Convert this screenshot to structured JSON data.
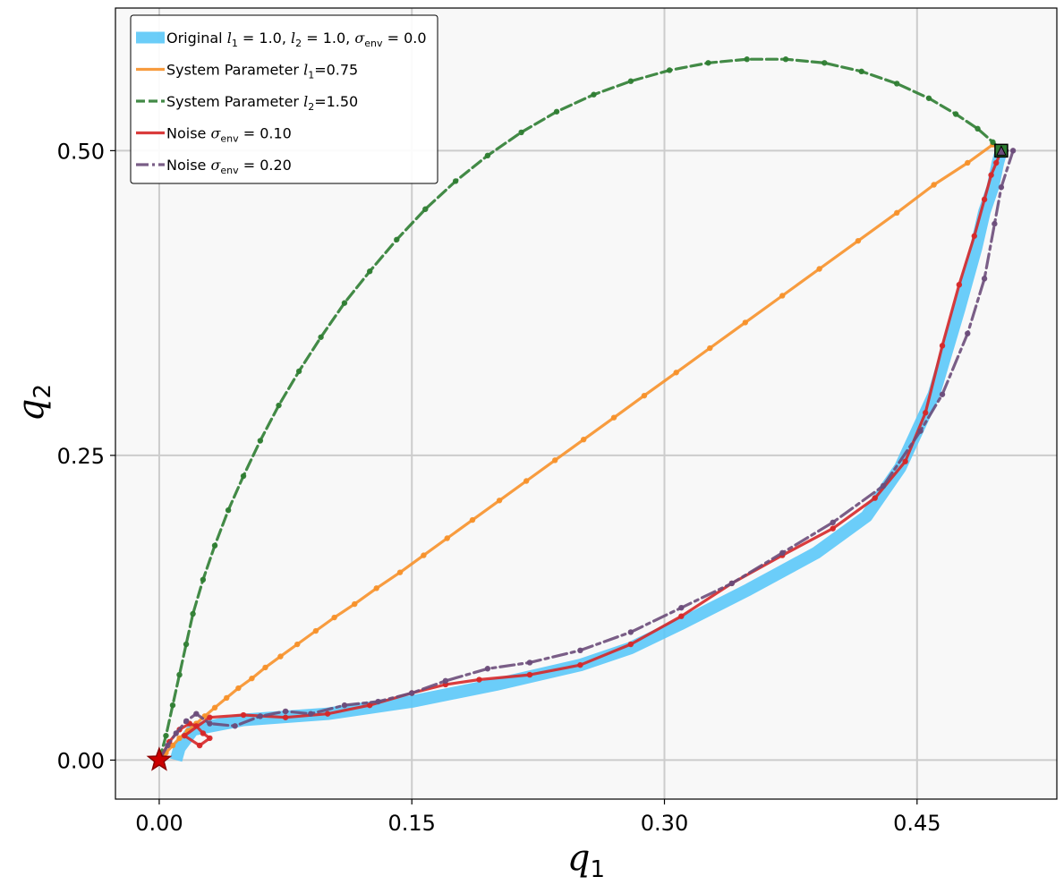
{
  "chart_data": {
    "type": "line",
    "xlabel": {
      "var": "q",
      "sub": "1"
    },
    "ylabel": {
      "var": "q",
      "sub": "2"
    },
    "xlim": [
      -0.026,
      0.533
    ],
    "ylim": [
      -0.032,
      0.617
    ],
    "xticks": [
      0.0,
      0.15,
      0.3,
      0.45
    ],
    "xtick_labels": [
      "0.00",
      "0.15",
      "0.30",
      "0.45"
    ],
    "yticks": [
      0.0,
      0.25,
      0.5
    ],
    "ytick_labels": [
      "0.00",
      "0.25",
      "0.50"
    ],
    "grid": true,
    "legend_position": "top-left",
    "background": "#f8f8f8",
    "start_marker": {
      "x": 0.0,
      "y": 0.0,
      "shape": "star",
      "color": "#cc0000"
    },
    "goal_marker": {
      "x": 0.5,
      "y": 0.5,
      "shape": "square",
      "color": "#2e7d32"
    },
    "legend": [
      {
        "key": "original",
        "parts": [
          [
            "Original ",
            "t"
          ],
          [
            "l",
            "m"
          ],
          [
            "1",
            "s"
          ],
          [
            " = 1.0, ",
            "t"
          ],
          [
            "l",
            "m"
          ],
          [
            "2",
            "s"
          ],
          [
            " = 1.0, ",
            "t"
          ],
          [
            "σ",
            "m"
          ],
          [
            "env",
            "s"
          ],
          [
            " = 0.0",
            "t"
          ]
        ]
      },
      {
        "key": "l1",
        "parts": [
          [
            "System Parameter ",
            "t"
          ],
          [
            "l",
            "m"
          ],
          [
            "1",
            "s"
          ],
          [
            "=0.75",
            "t"
          ]
        ]
      },
      {
        "key": "l2",
        "parts": [
          [
            "System Parameter ",
            "t"
          ],
          [
            "l",
            "m"
          ],
          [
            "2",
            "s"
          ],
          [
            "=1.50",
            "t"
          ]
        ]
      },
      {
        "key": "noise1",
        "parts": [
          [
            "Noise ",
            "t"
          ],
          [
            "σ",
            "m"
          ],
          [
            "env",
            "s"
          ],
          [
            " = 0.10",
            "t"
          ]
        ]
      },
      {
        "key": "noise2",
        "parts": [
          [
            "Noise ",
            "t"
          ],
          [
            "σ",
            "m"
          ],
          [
            "env",
            "s"
          ],
          [
            " = 0.20",
            "t"
          ]
        ]
      }
    ],
    "series": [
      {
        "key": "original",
        "name": "Original l1 = 1.0, l2 = 1.0, σenv = 0.0",
        "color": "#5bc8f8",
        "style": "thick",
        "x": [
          0.01,
          0.012,
          0.02,
          0.05,
          0.1,
          0.15,
          0.2,
          0.25,
          0.28,
          0.31,
          0.35,
          0.39,
          0.42,
          0.44,
          0.46,
          0.475,
          0.485,
          0.49,
          0.495,
          0.498,
          0.5
        ],
        "y": [
          0.0,
          0.01,
          0.025,
          0.033,
          0.038,
          0.048,
          0.062,
          0.078,
          0.092,
          0.112,
          0.14,
          0.17,
          0.2,
          0.24,
          0.3,
          0.37,
          0.42,
          0.45,
          0.47,
          0.49,
          0.5
        ]
      },
      {
        "key": "l1",
        "name": "System Parameter l1=0.75",
        "color": "#f7912a",
        "style": "solid",
        "x": [
          0.0,
          0.004,
          0.008,
          0.012,
          0.017,
          0.022,
          0.027,
          0.033,
          0.04,
          0.047,
          0.055,
          0.063,
          0.072,
          0.082,
          0.093,
          0.104,
          0.116,
          0.129,
          0.143,
          0.157,
          0.171,
          0.186,
          0.202,
          0.218,
          0.235,
          0.252,
          0.27,
          0.288,
          0.307,
          0.327,
          0.348,
          0.37,
          0.392,
          0.415,
          0.438,
          0.46,
          0.48,
          0.495,
          0.5
        ],
        "y": [
          0.0,
          0.006,
          0.012,
          0.018,
          0.024,
          0.03,
          0.036,
          0.043,
          0.051,
          0.059,
          0.067,
          0.076,
          0.085,
          0.095,
          0.106,
          0.117,
          0.128,
          0.141,
          0.154,
          0.168,
          0.182,
          0.197,
          0.213,
          0.229,
          0.246,
          0.263,
          0.281,
          0.299,
          0.318,
          0.338,
          0.359,
          0.381,
          0.403,
          0.426,
          0.449,
          0.472,
          0.49,
          0.505,
          0.5
        ]
      },
      {
        "key": "l2",
        "name": "System Parameter l2=1.50",
        "color": "#2e7d32",
        "style": "dash",
        "x": [
          0.0,
          0.004,
          0.008,
          0.012,
          0.016,
          0.02,
          0.026,
          0.033,
          0.041,
          0.05,
          0.06,
          0.071,
          0.083,
          0.096,
          0.11,
          0.125,
          0.141,
          0.158,
          0.176,
          0.195,
          0.215,
          0.236,
          0.258,
          0.28,
          0.303,
          0.326,
          0.349,
          0.372,
          0.395,
          0.417,
          0.438,
          0.457,
          0.473,
          0.486,
          0.495,
          0.5
        ],
        "y": [
          0.0,
          0.02,
          0.045,
          0.07,
          0.095,
          0.12,
          0.148,
          0.176,
          0.205,
          0.233,
          0.262,
          0.291,
          0.319,
          0.347,
          0.375,
          0.401,
          0.427,
          0.452,
          0.475,
          0.496,
          0.515,
          0.532,
          0.546,
          0.557,
          0.566,
          0.572,
          0.575,
          0.575,
          0.572,
          0.565,
          0.555,
          0.543,
          0.53,
          0.518,
          0.507,
          0.5
        ]
      },
      {
        "key": "noise1",
        "name": "Noise σenv = 0.10",
        "color": "#d62728",
        "style": "solid",
        "x": [
          0.0,
          0.006,
          0.012,
          0.018,
          0.022,
          0.026,
          0.03,
          0.024,
          0.015,
          0.03,
          0.05,
          0.075,
          0.1,
          0.125,
          0.15,
          0.17,
          0.19,
          0.22,
          0.25,
          0.28,
          0.31,
          0.34,
          0.37,
          0.4,
          0.425,
          0.443,
          0.455,
          0.465,
          0.475,
          0.484,
          0.49,
          0.494,
          0.497,
          0.5
        ],
        "y": [
          0.0,
          0.015,
          0.025,
          0.03,
          0.028,
          0.022,
          0.018,
          0.012,
          0.02,
          0.035,
          0.037,
          0.035,
          0.038,
          0.045,
          0.055,
          0.062,
          0.066,
          0.07,
          0.078,
          0.095,
          0.118,
          0.145,
          0.168,
          0.19,
          0.215,
          0.245,
          0.285,
          0.34,
          0.39,
          0.43,
          0.46,
          0.48,
          0.49,
          0.5
        ]
      },
      {
        "key": "noise2",
        "name": "Noise σenv = 0.20",
        "color": "#6b4c7a",
        "style": "dashdot",
        "x": [
          0.0,
          0.005,
          0.01,
          0.016,
          0.022,
          0.03,
          0.045,
          0.06,
          0.075,
          0.09,
          0.11,
          0.13,
          0.15,
          0.17,
          0.195,
          0.22,
          0.25,
          0.28,
          0.31,
          0.34,
          0.37,
          0.4,
          0.43,
          0.452,
          0.465,
          0.48,
          0.49,
          0.496,
          0.5,
          0.507,
          0.5
        ],
        "y": [
          0.0,
          0.012,
          0.022,
          0.032,
          0.038,
          0.03,
          0.028,
          0.036,
          0.04,
          0.038,
          0.045,
          0.048,
          0.055,
          0.065,
          0.075,
          0.08,
          0.09,
          0.105,
          0.125,
          0.145,
          0.17,
          0.195,
          0.225,
          0.27,
          0.3,
          0.35,
          0.395,
          0.44,
          0.47,
          0.5,
          0.5
        ]
      }
    ]
  }
}
